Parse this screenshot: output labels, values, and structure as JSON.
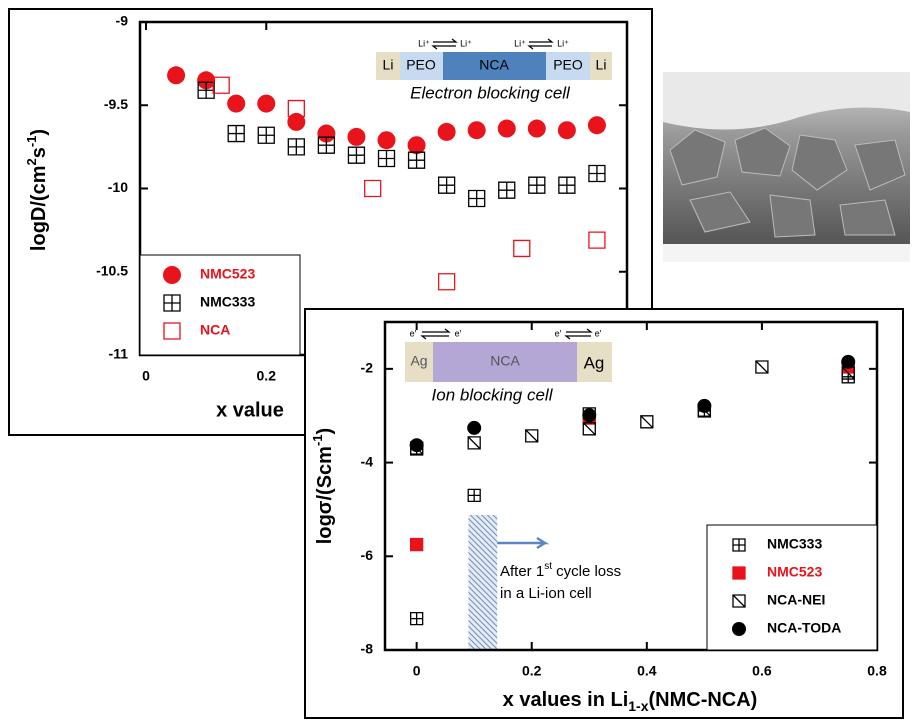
{
  "chart_data": [
    {
      "type": "scatter",
      "y_label": [
        "logD/(cm",
        "2",
        "s",
        "-1",
        ")"
      ],
      "x_label": "x value",
      "xlim": [
        -0.01,
        0.8
      ],
      "xticks": [
        0,
        0.2
      ],
      "ylim": [
        -11,
        -9
      ],
      "yticks": [
        -9,
        -9.5,
        -10,
        -10.5,
        -11
      ],
      "legend": "lower left",
      "inset": {
        "segments": [
          "Li",
          "PEO",
          "NCA",
          "PEO",
          "Li"
        ],
        "ions": [
          "Li⁺",
          "Li⁺",
          "Li⁺",
          "Li⁺"
        ],
        "caption": "Electron blocking cell"
      },
      "series": [
        {
          "name": "NMC523",
          "color": "#e8131b",
          "marker": "circle",
          "x": [
            0.05,
            0.1,
            0.15,
            0.2,
            0.25,
            0.3,
            0.35,
            0.4,
            0.45,
            0.5,
            0.55,
            0.6,
            0.65,
            0.7,
            0.75
          ],
          "values": [
            -9.32,
            -9.35,
            -9.49,
            -9.49,
            -9.6,
            -9.67,
            -9.69,
            -9.71,
            -9.74,
            -9.66,
            -9.65,
            -9.64,
            -9.64,
            -9.65,
            -9.62
          ]
        },
        {
          "name": "NMC333",
          "color": "#000000",
          "marker": "crossed-square",
          "x": [
            0.1,
            0.15,
            0.2,
            0.25,
            0.3,
            0.35,
            0.4,
            0.45,
            0.5,
            0.55,
            0.6,
            0.65,
            0.7,
            0.75
          ],
          "values": [
            -9.41,
            -9.67,
            -9.68,
            -9.75,
            -9.74,
            -9.8,
            -9.82,
            -9.83,
            -9.98,
            -10.06,
            -10.01,
            -9.98,
            -9.98,
            -9.91
          ]
        },
        {
          "name": "NCA",
          "color": "#e8131b",
          "marker": "open-square",
          "x": [
            0.125,
            0.25,
            0.377,
            0.5,
            0.625,
            0.75
          ],
          "values": [
            -9.38,
            -9.52,
            -10.0,
            -10.56,
            -10.36,
            -10.31
          ]
        }
      ]
    },
    {
      "type": "scatter",
      "y_label": [
        "logσ/(Scm",
        "-1",
        ")"
      ],
      "x_label": [
        "x values  in Li",
        "1-x",
        "(NMC-NCA)"
      ],
      "xlim": [
        -0.055,
        0.8
      ],
      "xticks": [
        0,
        0.2,
        0.4,
        0.6,
        0.8
      ],
      "ylim": [
        -8,
        -1
      ],
      "yticks": [
        -2,
        -4,
        -6,
        -8
      ],
      "legend": "lower right",
      "inset": {
        "segments": [
          "Ag",
          "NCA",
          "Ag"
        ],
        "electrons": [
          "e′",
          "e′",
          "e′",
          "e′"
        ],
        "caption": "Ion blocking cell"
      },
      "shaded_span": [
        0.09,
        0.14
      ],
      "annotation": {
        "line1": [
          "After 1",
          "st",
          " cycle loss"
        ],
        "line2": "in a Li-ion cell"
      },
      "series": [
        {
          "name": "NMC333",
          "color": "#000000",
          "marker": "crossed-square",
          "x": [
            0,
            0,
            0.1,
            0.3,
            0.5,
            0.75
          ],
          "values": [
            -3.71,
            -7.33,
            -4.7,
            -2.96,
            -2.9,
            -2.17
          ]
        },
        {
          "name": "NMC523",
          "color": "#e8131b",
          "marker": "filled-square",
          "x": [
            0,
            0.3,
            0.75
          ],
          "values": [
            -5.75,
            -3.05,
            -1.96
          ]
        },
        {
          "name": "NCA-NEI",
          "color": "#000000",
          "marker": "hatched-square",
          "x": [
            0,
            0.1,
            0.2,
            0.3,
            0.4,
            0.5,
            0.6,
            0.75
          ],
          "values": [
            -3.69,
            -3.58,
            -3.43,
            -3.28,
            -3.13,
            -2.88,
            -1.96,
            -2.09
          ]
        },
        {
          "name": "NCA-TODA",
          "color": "#000000",
          "marker": "circle",
          "x": [
            0,
            0.1,
            0.3,
            0.5,
            0.75
          ],
          "values": [
            -3.63,
            -3.26,
            -2.99,
            -2.79,
            -1.85
          ]
        }
      ]
    }
  ]
}
